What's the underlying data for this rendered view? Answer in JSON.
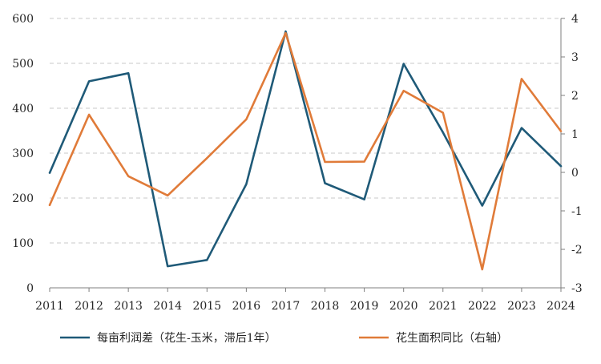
{
  "chart_data": {
    "type": "line",
    "x": [
      2011,
      2012,
      2013,
      2014,
      2015,
      2016,
      2017,
      2018,
      2019,
      2020,
      2021,
      2022,
      2023,
      2024
    ],
    "x_ticks": [
      "2011",
      "2012",
      "2013",
      "2014",
      "2015",
      "2016",
      "2017",
      "2018",
      "2019",
      "2020",
      "2021",
      "2022",
      "2023",
      "2024"
    ],
    "y_left": {
      "lim": [
        0,
        600
      ],
      "ticks": [
        "0",
        "100",
        "200",
        "300",
        "400",
        "500",
        "600"
      ]
    },
    "y_right": {
      "lim": [
        -3,
        4
      ],
      "ticks": [
        "-3",
        "-2",
        "-1",
        "0",
        "1",
        "2",
        "3",
        "4"
      ]
    },
    "grid": true,
    "legend_position": "bottom",
    "series": [
      {
        "name": "每亩利润差（花生-玉米，滞后1年）",
        "axis": "left",
        "color": "#1f5a78",
        "values": [
          256,
          460,
          478,
          48,
          62,
          231,
          571,
          233,
          197,
          499,
          346,
          183,
          356,
          271
        ]
      },
      {
        "name": "花生面积同比（右轴）",
        "axis": "right",
        "color": "#e07b39",
        "values": [
          -0.85,
          1.5,
          -0.1,
          -0.6,
          0.37,
          1.38,
          3.62,
          0.27,
          0.28,
          2.12,
          1.55,
          -2.52,
          2.43,
          1.07
        ]
      }
    ]
  }
}
